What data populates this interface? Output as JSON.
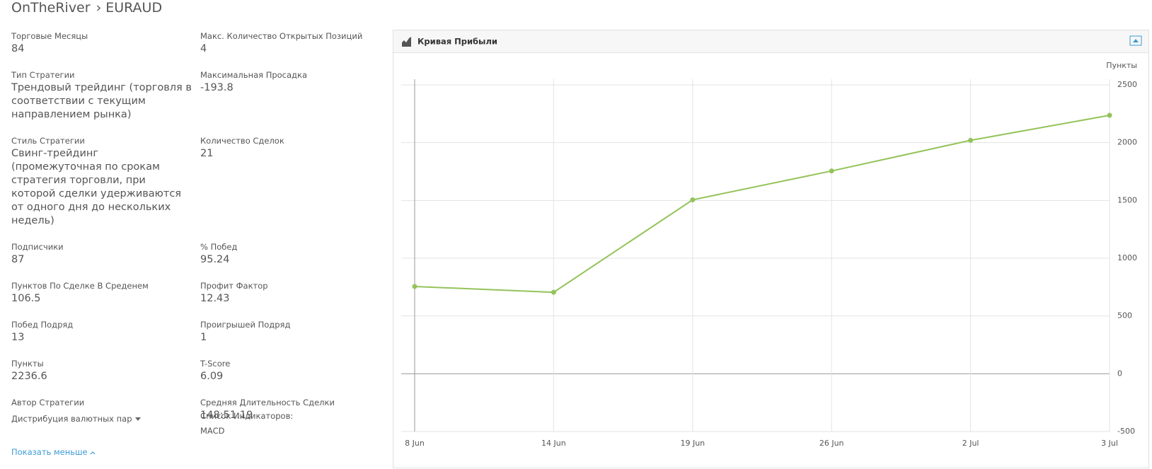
{
  "header": {
    "account": "OnTheRiver",
    "symbol": "› EURAUD"
  },
  "stats": [
    [
      {
        "label": "Торговые Месяцы",
        "value": "84"
      },
      {
        "label": "Макс. Количество Открытых Позиций",
        "value": "4"
      }
    ],
    [
      {
        "label": "Тип Стратегии",
        "value": "Трендовый трейдинг (торговля в соответствии с текущим направлением рынка)"
      },
      {
        "label": "Максимальная Просадка",
        "value": "-193.8"
      }
    ],
    [
      {
        "label": "Стиль Стратегии",
        "value": "Свинг-трейдинг (промежуточная по срокам стратегия торговли, при которой сделки удерживаются от одного дня до нескольких недель)"
      },
      {
        "label": "Количество Сделок",
        "value": "21"
      }
    ],
    [
      {
        "label": "Подписчики",
        "value": "87"
      },
      {
        "label": "% Побед",
        "value": "95.24"
      }
    ],
    [
      {
        "label": "Пунктов По Сделке В Среденем",
        "value": "106.5"
      },
      {
        "label": "Профит Фактор",
        "value": "12.43"
      }
    ],
    [
      {
        "label": "Побед Подряд",
        "value": "13"
      },
      {
        "label": "Проигрышей Подряд",
        "value": "1"
      }
    ],
    [
      {
        "label": "Пункты",
        "value": "2236.6"
      },
      {
        "label": "T-Score",
        "value": "6.09"
      }
    ],
    [
      {
        "label": "Автор Стратегии"
      },
      {
        "label": "Средняя Длительность Сделки",
        "value": "148:51:19"
      }
    ]
  ],
  "distribution": "Дистрибуция валютных пар",
  "indicators": {
    "label": "Список Индикаторов:",
    "value": "MACD"
  },
  "show_less": "Показать меньше",
  "chart_data": {
    "type": "line",
    "title": "Кривая Прибыли",
    "y_label": "Пункты",
    "categories": [
      "8 Jun",
      "14 Jun",
      "19 Jun",
      "26 Jun",
      "2 Jul",
      "3 Jul"
    ],
    "values": [
      755,
      705,
      1505,
      1755,
      2020,
      2236.6
    ],
    "color": "#94c35a",
    "ylim": [
      -500,
      2500
    ],
    "yticks": [
      -500,
      0,
      500,
      1000,
      1500,
      2000,
      2500
    ],
    "grid": true
  }
}
